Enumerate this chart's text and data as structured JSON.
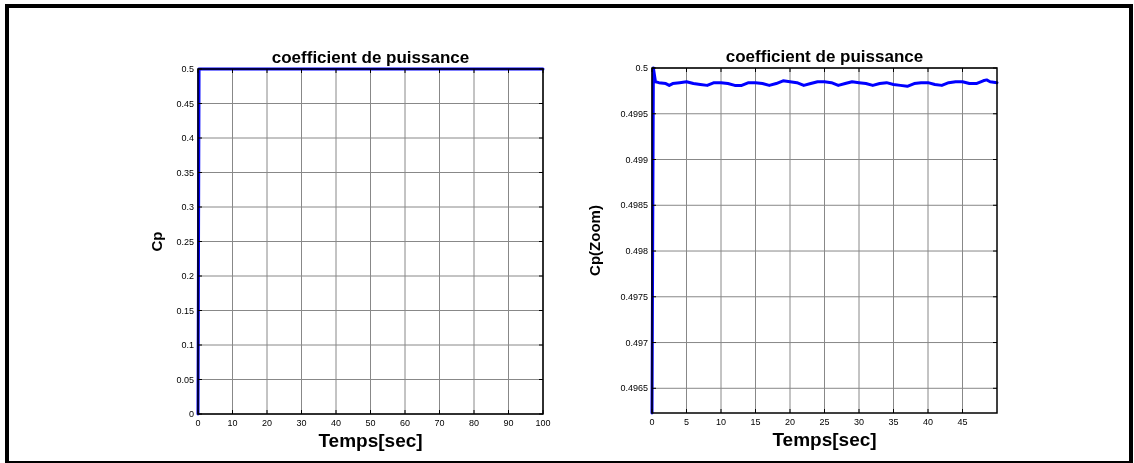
{
  "chart_data": [
    {
      "type": "line",
      "title": "coefficient de puissance",
      "xlabel": "Temps[sec]",
      "ylabel": "Cp",
      "x": [
        0,
        0.3,
        100
      ],
      "series": [
        {
          "color": "#0000ff",
          "values": [
            0,
            0.5,
            0.5
          ]
        }
      ],
      "xlim": [
        0,
        100
      ],
      "xticks": [
        0,
        10,
        20,
        30,
        40,
        50,
        60,
        70,
        80,
        90,
        100
      ],
      "ylim": [
        0,
        0.5
      ],
      "yticks": [
        0,
        0.05,
        0.1,
        0.15,
        0.2,
        0.25,
        0.3,
        0.35,
        0.4,
        0.45,
        0.5
      ],
      "grid": true,
      "line_style": "solid",
      "marker": "none"
    },
    {
      "type": "line",
      "title": "coefficient de puissance",
      "xlabel": "Temps[sec]",
      "ylabel": "Cp(Zoom)",
      "x": [
        0,
        0.2,
        0.5,
        1,
        2,
        2.5,
        3,
        4,
        5,
        6,
        7,
        8,
        9,
        10,
        11,
        12,
        13,
        14,
        15,
        16,
        17,
        18,
        19,
        20,
        21,
        22,
        23,
        24,
        25,
        26,
        27,
        28,
        29,
        30,
        31,
        32,
        33,
        34,
        35,
        36,
        37,
        38,
        39,
        40,
        41,
        42,
        43,
        44,
        45,
        46,
        47,
        48,
        48.5,
        49,
        50
      ],
      "series": [
        {
          "color": "#0000ff",
          "values": [
            0.49623,
            0.5,
            0.49985,
            0.49984,
            0.49983,
            0.49981,
            0.49983,
            0.49984,
            0.49985,
            0.49983,
            0.49982,
            0.49981,
            0.49984,
            0.49984,
            0.49983,
            0.49981,
            0.49981,
            0.49984,
            0.49984,
            0.49983,
            0.49981,
            0.49983,
            0.49986,
            0.49985,
            0.49984,
            0.49981,
            0.49983,
            0.49985,
            0.49985,
            0.49984,
            0.49981,
            0.49983,
            0.49985,
            0.49984,
            0.49983,
            0.49981,
            0.49983,
            0.49984,
            0.49982,
            0.49981,
            0.4998,
            0.49983,
            0.49984,
            0.49984,
            0.49982,
            0.49981,
            0.49984,
            0.49985,
            0.49985,
            0.49983,
            0.49983,
            0.49986,
            0.49987,
            0.49985,
            0.49984
          ]
        }
      ],
      "xlim": [
        0,
        50
      ],
      "xticks": [
        0,
        5,
        10,
        15,
        20,
        25,
        30,
        35,
        40,
        45
      ],
      "ylim": [
        0.49623,
        0.5
      ],
      "yticks": [
        0.4965,
        0.497,
        0.4975,
        0.498,
        0.4985,
        0.499,
        0.4995,
        0.5
      ],
      "grid": true,
      "line_style": "solid",
      "marker": "none"
    }
  ]
}
